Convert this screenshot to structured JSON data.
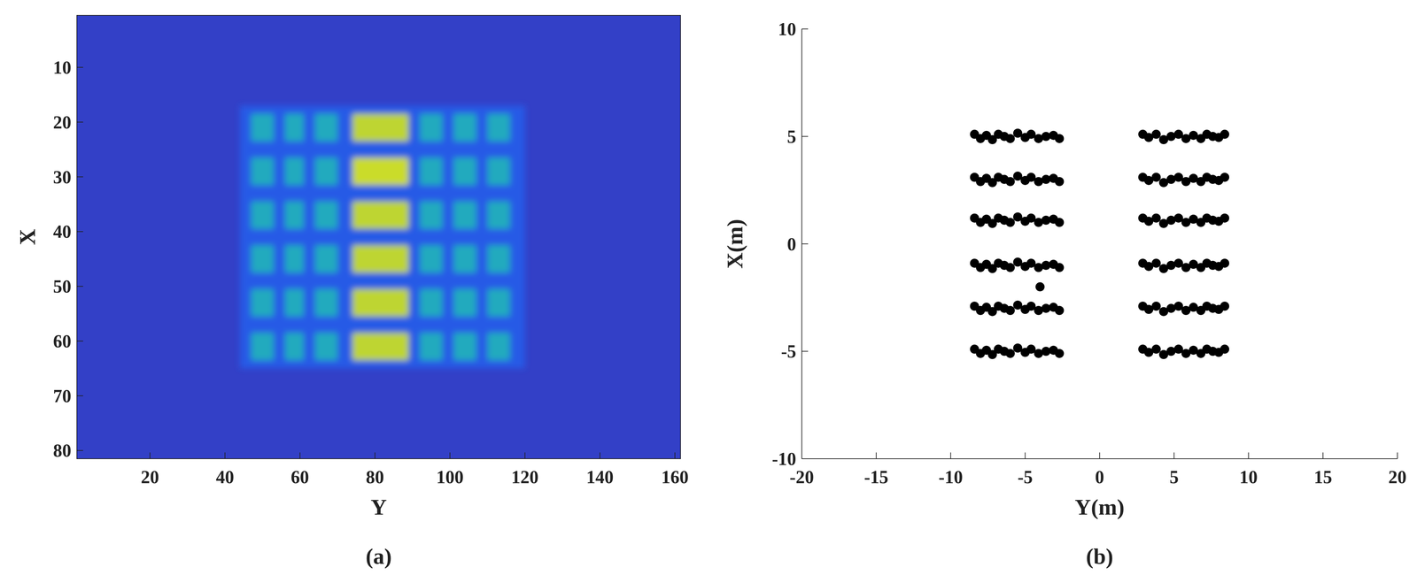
{
  "chart_data": [
    {
      "type": "heatmap",
      "label": "(a)",
      "x_label": "Y",
      "y_label": "X",
      "xlim": [
        0.5,
        161.5
      ],
      "ylim": [
        81.5,
        0.5
      ],
      "xticks": [
        20,
        40,
        60,
        80,
        100,
        120,
        140,
        160
      ],
      "yticks": [
        10,
        20,
        30,
        40,
        50,
        60,
        70,
        80
      ],
      "zlim": [
        0,
        1
      ],
      "background": 0.1,
      "cells": [
        {
          "x": [
            44,
            120
          ],
          "y": [
            17,
            65
          ],
          "value": 0.2
        },
        {
          "x": [
            47,
            53
          ],
          "y": [
            18.5,
            23.5
          ],
          "value": 0.5
        },
        {
          "x": [
            56,
            61
          ],
          "y": [
            18.5,
            23.5
          ],
          "value": 0.5
        },
        {
          "x": [
            64,
            70
          ],
          "y": [
            18.5,
            23.5
          ],
          "value": 0.5
        },
        {
          "x": [
            74,
            89
          ],
          "y": [
            18.5,
            23.5
          ],
          "value": 0.85
        },
        {
          "x": [
            92,
            98
          ],
          "y": [
            18.5,
            23.5
          ],
          "value": 0.5
        },
        {
          "x": [
            101,
            107
          ],
          "y": [
            18.5,
            23.5
          ],
          "value": 0.5
        },
        {
          "x": [
            110,
            116
          ],
          "y": [
            18.5,
            23.5
          ],
          "value": 0.5
        },
        {
          "x": [
            47,
            53
          ],
          "y": [
            26.5,
            31.5
          ],
          "value": 0.5
        },
        {
          "x": [
            56,
            61
          ],
          "y": [
            26.5,
            31.5
          ],
          "value": 0.5
        },
        {
          "x": [
            64,
            70
          ],
          "y": [
            26.5,
            31.5
          ],
          "value": 0.5
        },
        {
          "x": [
            74,
            89
          ],
          "y": [
            26.5,
            31.5
          ],
          "value": 0.88
        },
        {
          "x": [
            92,
            98
          ],
          "y": [
            26.5,
            31.5
          ],
          "value": 0.5
        },
        {
          "x": [
            101,
            107
          ],
          "y": [
            26.5,
            31.5
          ],
          "value": 0.5
        },
        {
          "x": [
            110,
            116
          ],
          "y": [
            26.5,
            31.5
          ],
          "value": 0.5
        },
        {
          "x": [
            47,
            53
          ],
          "y": [
            34.5,
            39.5
          ],
          "value": 0.5
        },
        {
          "x": [
            56,
            61
          ],
          "y": [
            34.5,
            39.5
          ],
          "value": 0.5
        },
        {
          "x": [
            64,
            70
          ],
          "y": [
            34.5,
            39.5
          ],
          "value": 0.5
        },
        {
          "x": [
            74,
            89
          ],
          "y": [
            34.5,
            39.5
          ],
          "value": 0.85
        },
        {
          "x": [
            92,
            98
          ],
          "y": [
            34.5,
            39.5
          ],
          "value": 0.5
        },
        {
          "x": [
            101,
            107
          ],
          "y": [
            34.5,
            39.5
          ],
          "value": 0.5
        },
        {
          "x": [
            110,
            116
          ],
          "y": [
            34.5,
            39.5
          ],
          "value": 0.5
        },
        {
          "x": [
            47,
            53
          ],
          "y": [
            42.5,
            47.5
          ],
          "value": 0.5
        },
        {
          "x": [
            56,
            61
          ],
          "y": [
            42.5,
            47.5
          ],
          "value": 0.5
        },
        {
          "x": [
            64,
            70
          ],
          "y": [
            42.5,
            47.5
          ],
          "value": 0.5
        },
        {
          "x": [
            74,
            89
          ],
          "y": [
            42.5,
            47.5
          ],
          "value": 0.85
        },
        {
          "x": [
            92,
            98
          ],
          "y": [
            42.5,
            47.5
          ],
          "value": 0.5
        },
        {
          "x": [
            101,
            107
          ],
          "y": [
            42.5,
            47.5
          ],
          "value": 0.5
        },
        {
          "x": [
            110,
            116
          ],
          "y": [
            42.5,
            47.5
          ],
          "value": 0.5
        },
        {
          "x": [
            47,
            53
          ],
          "y": [
            50.5,
            55.5
          ],
          "value": 0.5
        },
        {
          "x": [
            56,
            61
          ],
          "y": [
            50.5,
            55.5
          ],
          "value": 0.5
        },
        {
          "x": [
            64,
            70
          ],
          "y": [
            50.5,
            55.5
          ],
          "value": 0.5
        },
        {
          "x": [
            74,
            89
          ],
          "y": [
            50.5,
            55.5
          ],
          "value": 0.85
        },
        {
          "x": [
            92,
            98
          ],
          "y": [
            50.5,
            55.5
          ],
          "value": 0.5
        },
        {
          "x": [
            101,
            107
          ],
          "y": [
            50.5,
            55.5
          ],
          "value": 0.5
        },
        {
          "x": [
            110,
            116
          ],
          "y": [
            50.5,
            55.5
          ],
          "value": 0.5
        },
        {
          "x": [
            47,
            53
          ],
          "y": [
            58.5,
            63.5
          ],
          "value": 0.5
        },
        {
          "x": [
            56,
            61
          ],
          "y": [
            58.5,
            63.5
          ],
          "value": 0.5
        },
        {
          "x": [
            64,
            70
          ],
          "y": [
            58.5,
            63.5
          ],
          "value": 0.5
        },
        {
          "x": [
            74,
            89
          ],
          "y": [
            58.5,
            63.5
          ],
          "value": 0.85
        },
        {
          "x": [
            92,
            98
          ],
          "y": [
            58.5,
            63.5
          ],
          "value": 0.5
        },
        {
          "x": [
            101,
            107
          ],
          "y": [
            58.5,
            63.5
          ],
          "value": 0.5
        },
        {
          "x": [
            110,
            116
          ],
          "y": [
            58.5,
            63.5
          ],
          "value": 0.5
        }
      ]
    },
    {
      "type": "scatter",
      "label": "(b)",
      "x_label": "Y(m)",
      "y_label": "X(m)",
      "color": "#000000",
      "marker": "circle",
      "xlim": [
        -20,
        20
      ],
      "ylim": [
        -10,
        10
      ],
      "xticks": [
        -20,
        -15,
        -10,
        -5,
        0,
        5,
        10,
        15,
        20
      ],
      "yticks": [
        -10,
        -5,
        0,
        5,
        10
      ],
      "x": [
        -8.4,
        -8.0,
        -7.6,
        -7.2,
        -6.8,
        -6.4,
        -6.0,
        -5.5,
        -5.0,
        -4.6,
        -4.1,
        -3.6,
        -3.1,
        -2.7,
        2.9,
        3.3,
        3.8,
        4.3,
        4.8,
        5.3,
        5.8,
        6.3,
        6.8,
        7.2,
        7.6,
        8.0,
        8.4,
        -8.4,
        -8.0,
        -7.6,
        -7.2,
        -6.8,
        -6.4,
        -6.0,
        -5.5,
        -5.0,
        -4.6,
        -4.1,
        -3.6,
        -3.1,
        -2.7,
        2.9,
        3.3,
        3.8,
        4.3,
        4.8,
        5.3,
        5.8,
        6.3,
        6.8,
        7.2,
        7.6,
        8.0,
        8.4,
        -8.4,
        -8.0,
        -7.6,
        -7.2,
        -6.8,
        -6.4,
        -6.0,
        -5.5,
        -5.0,
        -4.6,
        -4.1,
        -3.6,
        -3.1,
        -2.7,
        2.9,
        3.3,
        3.8,
        4.3,
        4.8,
        5.3,
        5.8,
        6.3,
        6.8,
        7.2,
        7.6,
        8.0,
        8.4,
        -8.4,
        -8.0,
        -7.6,
        -7.2,
        -6.8,
        -6.4,
        -6.0,
        -5.5,
        -5.0,
        -4.6,
        -4.1,
        -3.6,
        -3.1,
        -2.7,
        2.9,
        3.3,
        3.8,
        4.3,
        4.8,
        5.3,
        5.8,
        6.3,
        6.8,
        7.2,
        7.6,
        8.0,
        8.4,
        -8.4,
        -8.0,
        -7.6,
        -7.2,
        -6.8,
        -6.4,
        -6.0,
        -5.5,
        -5.0,
        -4.6,
        -4.1,
        -3.6,
        -3.1,
        -2.7,
        2.9,
        3.3,
        3.8,
        4.3,
        4.8,
        5.3,
        5.8,
        6.3,
        6.8,
        7.2,
        7.6,
        8.0,
        8.4,
        -8.4,
        -8.0,
        -7.6,
        -7.2,
        -6.8,
        -6.4,
        -6.0,
        -5.5,
        -5.0,
        -4.6,
        -4.1,
        -3.6,
        -3.1,
        -2.7,
        2.9,
        3.3,
        3.8,
        4.3,
        4.8,
        5.3,
        5.8,
        6.3,
        6.8,
        7.2,
        7.6,
        8.0,
        8.4,
        -4.0
      ],
      "y": [
        5.1,
        4.9,
        5.05,
        4.85,
        5.1,
        5.0,
        4.9,
        5.15,
        4.95,
        5.1,
        4.9,
        5.0,
        5.05,
        4.9,
        5.1,
        4.95,
        5.1,
        4.85,
        5.0,
        5.1,
        4.9,
        5.05,
        4.9,
        5.1,
        5.0,
        4.95,
        5.1,
        3.1,
        2.9,
        3.05,
        2.85,
        3.1,
        3.0,
        2.9,
        3.15,
        2.95,
        3.1,
        2.9,
        3.0,
        3.05,
        2.9,
        3.1,
        2.95,
        3.1,
        2.85,
        3.0,
        3.1,
        2.9,
        3.05,
        2.9,
        3.1,
        3.0,
        2.95,
        3.1,
        1.2,
        1.0,
        1.15,
        0.95,
        1.2,
        1.1,
        1.0,
        1.25,
        1.05,
        1.2,
        1.0,
        1.1,
        1.15,
        1.0,
        1.2,
        1.05,
        1.2,
        0.95,
        1.1,
        1.2,
        1.0,
        1.15,
        1.0,
        1.2,
        1.1,
        1.05,
        1.2,
        -0.9,
        -1.1,
        -0.95,
        -1.15,
        -0.9,
        -1.0,
        -1.1,
        -0.85,
        -1.05,
        -0.9,
        -1.1,
        -1.0,
        -0.95,
        -1.1,
        -0.9,
        -1.05,
        -0.9,
        -1.15,
        -1.0,
        -0.9,
        -1.1,
        -0.95,
        -1.1,
        -0.9,
        -1.0,
        -1.05,
        -0.9,
        -2.9,
        -3.1,
        -2.95,
        -3.15,
        -2.9,
        -3.0,
        -3.1,
        -2.85,
        -3.05,
        -2.9,
        -3.1,
        -3.0,
        -2.95,
        -3.1,
        -2.9,
        -3.05,
        -2.9,
        -3.15,
        -3.0,
        -2.9,
        -3.1,
        -2.95,
        -3.1,
        -2.9,
        -3.0,
        -3.05,
        -2.9,
        -4.9,
        -5.1,
        -4.95,
        -5.15,
        -4.9,
        -5.0,
        -5.1,
        -4.85,
        -5.05,
        -4.9,
        -5.1,
        -5.0,
        -4.95,
        -5.1,
        -4.9,
        -5.05,
        -4.9,
        -5.15,
        -5.0,
        -4.9,
        -5.1,
        -4.95,
        -5.1,
        -4.9,
        -5.0,
        -5.05,
        -4.9,
        -2.0
      ]
    }
  ]
}
